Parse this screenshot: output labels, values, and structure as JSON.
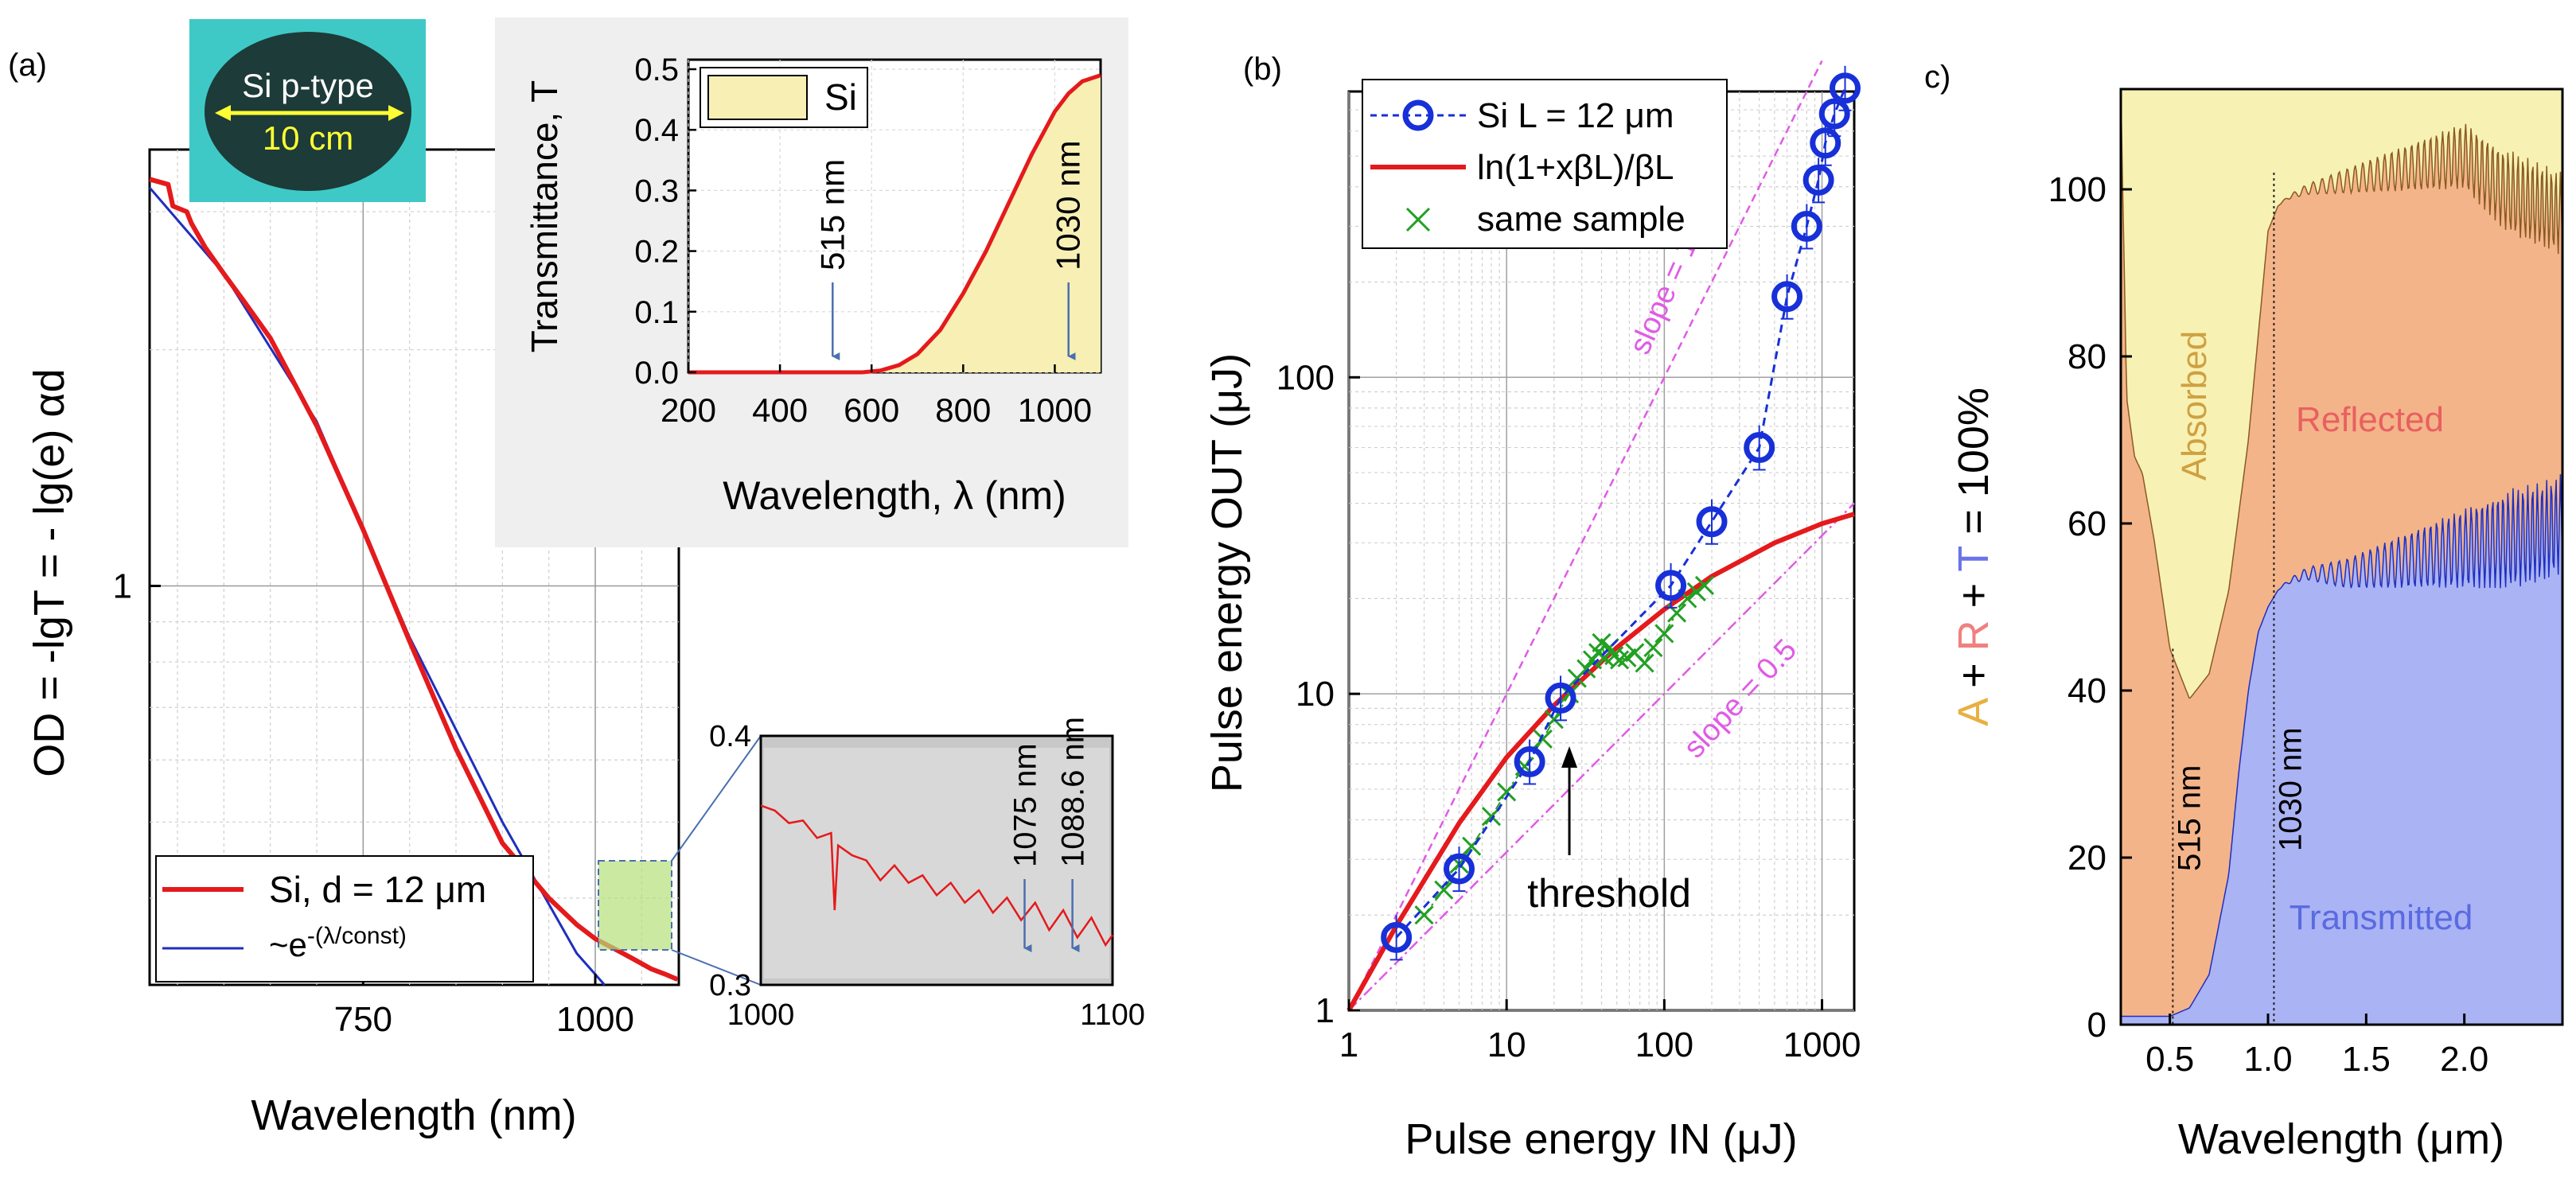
{
  "colors": {
    "si_red": "#e41a1c",
    "fit_blue": "#1f2fbf",
    "circle_blue": "#1730d8",
    "green": "#22a022",
    "magenta": "#e05be6",
    "panel_bg": "#efefef",
    "inset_gray": "#c8c8c8",
    "highlight_green": "#b6e07a",
    "absorbed": "#f7f2b4",
    "reflected": "#f4b48a",
    "transmitted": "#aab3f4",
    "photo_bg": "#3ec9c7",
    "photo_wafer": "#1d3b38",
    "photo_text": "#ffff33"
  },
  "chart_data": [
    {
      "id": "a",
      "panel_label": "(a)",
      "type": "line",
      "scale": "semilog-y",
      "xlabel": "Wavelength (nm)",
      "ylabel": "OD = -lgT = - lg(e) αd",
      "xlim": [
        520,
        1090
      ],
      "ylim": [
        0.31,
        3.6
      ],
      "xtick_labels": [
        "750",
        "1000"
      ],
      "xticks": [
        750,
        1000
      ],
      "ytick_labels": [
        "1"
      ],
      "yticks": [
        1
      ],
      "legend": {
        "position": "bottom-left",
        "entries": [
          "Si, d = 12 μm",
          "~e"
        ],
        "superscript": "-(λ/const)"
      },
      "series": [
        {
          "name": "Si, d = 12 μm",
          "color": "#e41a1c",
          "x": [
            520,
            540,
            545,
            560,
            565,
            580,
            600,
            620,
            650,
            700,
            750,
            800,
            850,
            900,
            950,
            980,
            1000,
            1020,
            1040,
            1060,
            1075,
            1088.6
          ],
          "y": [
            3.3,
            3.25,
            3.05,
            3.0,
            2.9,
            2.7,
            2.5,
            2.32,
            2.07,
            1.6,
            1.18,
            0.85,
            0.62,
            0.47,
            0.4,
            0.37,
            0.355,
            0.345,
            0.335,
            0.325,
            0.32,
            0.315
          ]
        },
        {
          "name": "~e^-(λ/const)",
          "color": "#1f2fbf",
          "x": [
            520,
            600,
            700,
            800,
            900,
            980,
            1010
          ],
          "y": [
            3.22,
            2.5,
            1.62,
            0.86,
            0.5,
            0.34,
            0.31
          ]
        }
      ],
      "inset_photo": {
        "line1": "Si p-type",
        "line2": "10 cm"
      },
      "inset_transmittance": {
        "type": "area",
        "xlabel": "Wavelength, λ (nm)",
        "ylabel": "Transmittance, T",
        "xlim": [
          200,
          1100
        ],
        "ylim": [
          0,
          0.5
        ],
        "xtick_labels": [
          "200",
          "400",
          "600",
          "800",
          "1000"
        ],
        "xticks": [
          200,
          400,
          600,
          800,
          1000
        ],
        "ytick_labels": [
          "0.0",
          "0.1",
          "0.2",
          "0.3",
          "0.4",
          "0.5"
        ],
        "yticks": [
          0,
          0.1,
          0.2,
          0.3,
          0.4,
          0.5
        ],
        "legend": "Si",
        "annotations": [
          "515 nm",
          "1030 nm"
        ],
        "annotation_x": [
          515,
          1030
        ],
        "x": [
          200,
          400,
          580,
          620,
          660,
          700,
          750,
          800,
          850,
          900,
          950,
          1000,
          1030,
          1060,
          1100
        ],
        "y": [
          0,
          0,
          0,
          0.003,
          0.012,
          0.03,
          0.07,
          0.13,
          0.2,
          0.28,
          0.36,
          0.43,
          0.46,
          0.48,
          0.49
        ]
      },
      "inset_zoom": {
        "type": "line",
        "xlim": [
          1000,
          1100
        ],
        "ylim": [
          0.3,
          0.4
        ],
        "xtick_labels": [
          "1000",
          "1100"
        ],
        "xticks": [
          1000,
          1100
        ],
        "ytick_labels": [
          "0.4",
          "0.3"
        ],
        "yticks": [
          0.4,
          0.3
        ],
        "annotations": [
          "1075 nm",
          "1088.6 nm"
        ],
        "annotation_x": [
          1075,
          1088.6
        ],
        "x": [
          1000,
          1004,
          1008,
          1012,
          1016,
          1020,
          1021,
          1022,
          1026,
          1030,
          1034,
          1038,
          1042,
          1046,
          1050,
          1054,
          1058,
          1062,
          1066,
          1070,
          1074,
          1078,
          1082,
          1086,
          1090,
          1094,
          1098,
          1100
        ],
        "y": [
          0.372,
          0.37,
          0.365,
          0.366,
          0.359,
          0.361,
          0.33,
          0.356,
          0.352,
          0.35,
          0.342,
          0.348,
          0.341,
          0.344,
          0.336,
          0.341,
          0.333,
          0.338,
          0.329,
          0.335,
          0.326,
          0.333,
          0.322,
          0.33,
          0.319,
          0.327,
          0.316,
          0.32
        ]
      }
    },
    {
      "id": "b",
      "panel_label": "(b)",
      "type": "scatter",
      "scale": "log-log",
      "xlabel": "Pulse energy IN (μJ)",
      "ylabel": "Pulse energy OUT (μJ)",
      "xlim": [
        1,
        1600
      ],
      "ylim": [
        1,
        800
      ],
      "xtick_labels": [
        "1",
        "10",
        "100",
        "1000"
      ],
      "xticks": [
        1,
        10,
        100,
        1000
      ],
      "ytick_labels": [
        "1",
        "10",
        "100"
      ],
      "yticks": [
        1,
        10,
        100
      ],
      "legend": {
        "position": "top-left",
        "entries": [
          "Si L = 12 μm",
          "ln(1+xβL)/βL",
          "same sample"
        ]
      },
      "series": [
        {
          "name": "Si L = 12 μm",
          "color": "#1730d8",
          "marker": "circle",
          "dashed": true,
          "x": [
            2,
            5,
            14,
            22,
            110,
            200,
            400,
            600,
            800,
            950,
            1050,
            1200,
            1400
          ],
          "y": [
            1.7,
            2.8,
            6.1,
            9.7,
            22,
            35,
            60,
            180,
            300,
            420,
            550,
            680,
            820
          ]
        },
        {
          "name": "ln(1+xβL)/βL",
          "color": "#e41a1c",
          "x": [
            1,
            2,
            5,
            10,
            20,
            50,
            100,
            200,
            500,
            1000,
            1600
          ],
          "y": [
            1,
            1.85,
            3.9,
            6.3,
            9.2,
            14,
            18.5,
            23.5,
            30,
            34.5,
            37
          ]
        },
        {
          "name": "same sample",
          "color": "#22a022",
          "marker": "x",
          "x": [
            3,
            4,
            5,
            6,
            8,
            10,
            13,
            17,
            20,
            25,
            28,
            32,
            35,
            38,
            40,
            42,
            45,
            48,
            52,
            58,
            65,
            75,
            85,
            100,
            120,
            140,
            160,
            180
          ],
          "y": [
            2,
            2.4,
            2.9,
            3.3,
            4.1,
            4.9,
            5.9,
            7.2,
            8.3,
            10,
            11.2,
            12,
            12.8,
            13.5,
            14.5,
            13,
            14,
            13.2,
            12.8,
            13,
            13.5,
            12.5,
            14,
            15.5,
            18,
            20,
            21,
            22
          ]
        },
        {
          "name": "slope = 1",
          "color": "#e05be6",
          "dashed": true,
          "x": [
            1,
            1000
          ],
          "y": [
            1,
            1000
          ]
        },
        {
          "name": "slope = 0.5",
          "color": "#e05be6",
          "dashed": true,
          "x": [
            1,
            1600
          ],
          "y": [
            1,
            40
          ]
        }
      ],
      "annotations": [
        "slope = 1",
        "slope = 0.5",
        "threshold"
      ],
      "threshold_x": 25
    },
    {
      "id": "c",
      "panel_label": "c)",
      "type": "area",
      "xlabel": "Wavelength (μm)",
      "ylabel_parts": [
        "A",
        " + ",
        "R",
        " + ",
        "T",
        " = 100%"
      ],
      "xlim": [
        0.25,
        2.5
      ],
      "ylim": [
        0,
        112
      ],
      "xtick_labels": [
        "0.5",
        "1.0",
        "1.5",
        "2.0"
      ],
      "xticks": [
        0.5,
        1.0,
        1.5,
        2.0
      ],
      "ytick_labels": [
        "0",
        "20",
        "40",
        "60",
        "80",
        "100"
      ],
      "yticks": [
        0,
        20,
        40,
        60,
        80,
        100
      ],
      "region_labels": [
        "Absorbed",
        "Reflected",
        "Transmitted"
      ],
      "annotations": [
        "515 nm",
        "1030 nm"
      ],
      "annotation_x": [
        0.515,
        1.03
      ],
      "series": [
        {
          "name": "R+T",
          "color": "#8a5a20",
          "x": [
            0.25,
            0.28,
            0.32,
            0.36,
            0.42,
            0.5,
            0.6,
            0.7,
            0.8,
            0.9,
            1.0,
            1.05,
            1.1,
            1.2,
            1.4,
            1.6,
            1.8,
            2.0,
            2.2,
            2.4,
            2.5
          ],
          "y": [
            112,
            75,
            68,
            66,
            58,
            45,
            39,
            42,
            52,
            70,
            95,
            98,
            99,
            100,
            101,
            102,
            103,
            104,
            100,
            98,
            97
          ]
        },
        {
          "name": "T",
          "color": "#1f2fbf",
          "x": [
            0.25,
            0.5,
            0.6,
            0.7,
            0.8,
            0.85,
            0.9,
            0.95,
            1.0,
            1.05,
            1.1,
            1.2,
            1.4,
            1.6,
            1.8,
            2.0,
            2.2,
            2.4,
            2.5
          ],
          "y": [
            1,
            1,
            2,
            6,
            18,
            30,
            40,
            47,
            50,
            52,
            53,
            54,
            54,
            55,
            56,
            57,
            58,
            59,
            60
          ]
        }
      ]
    }
  ]
}
